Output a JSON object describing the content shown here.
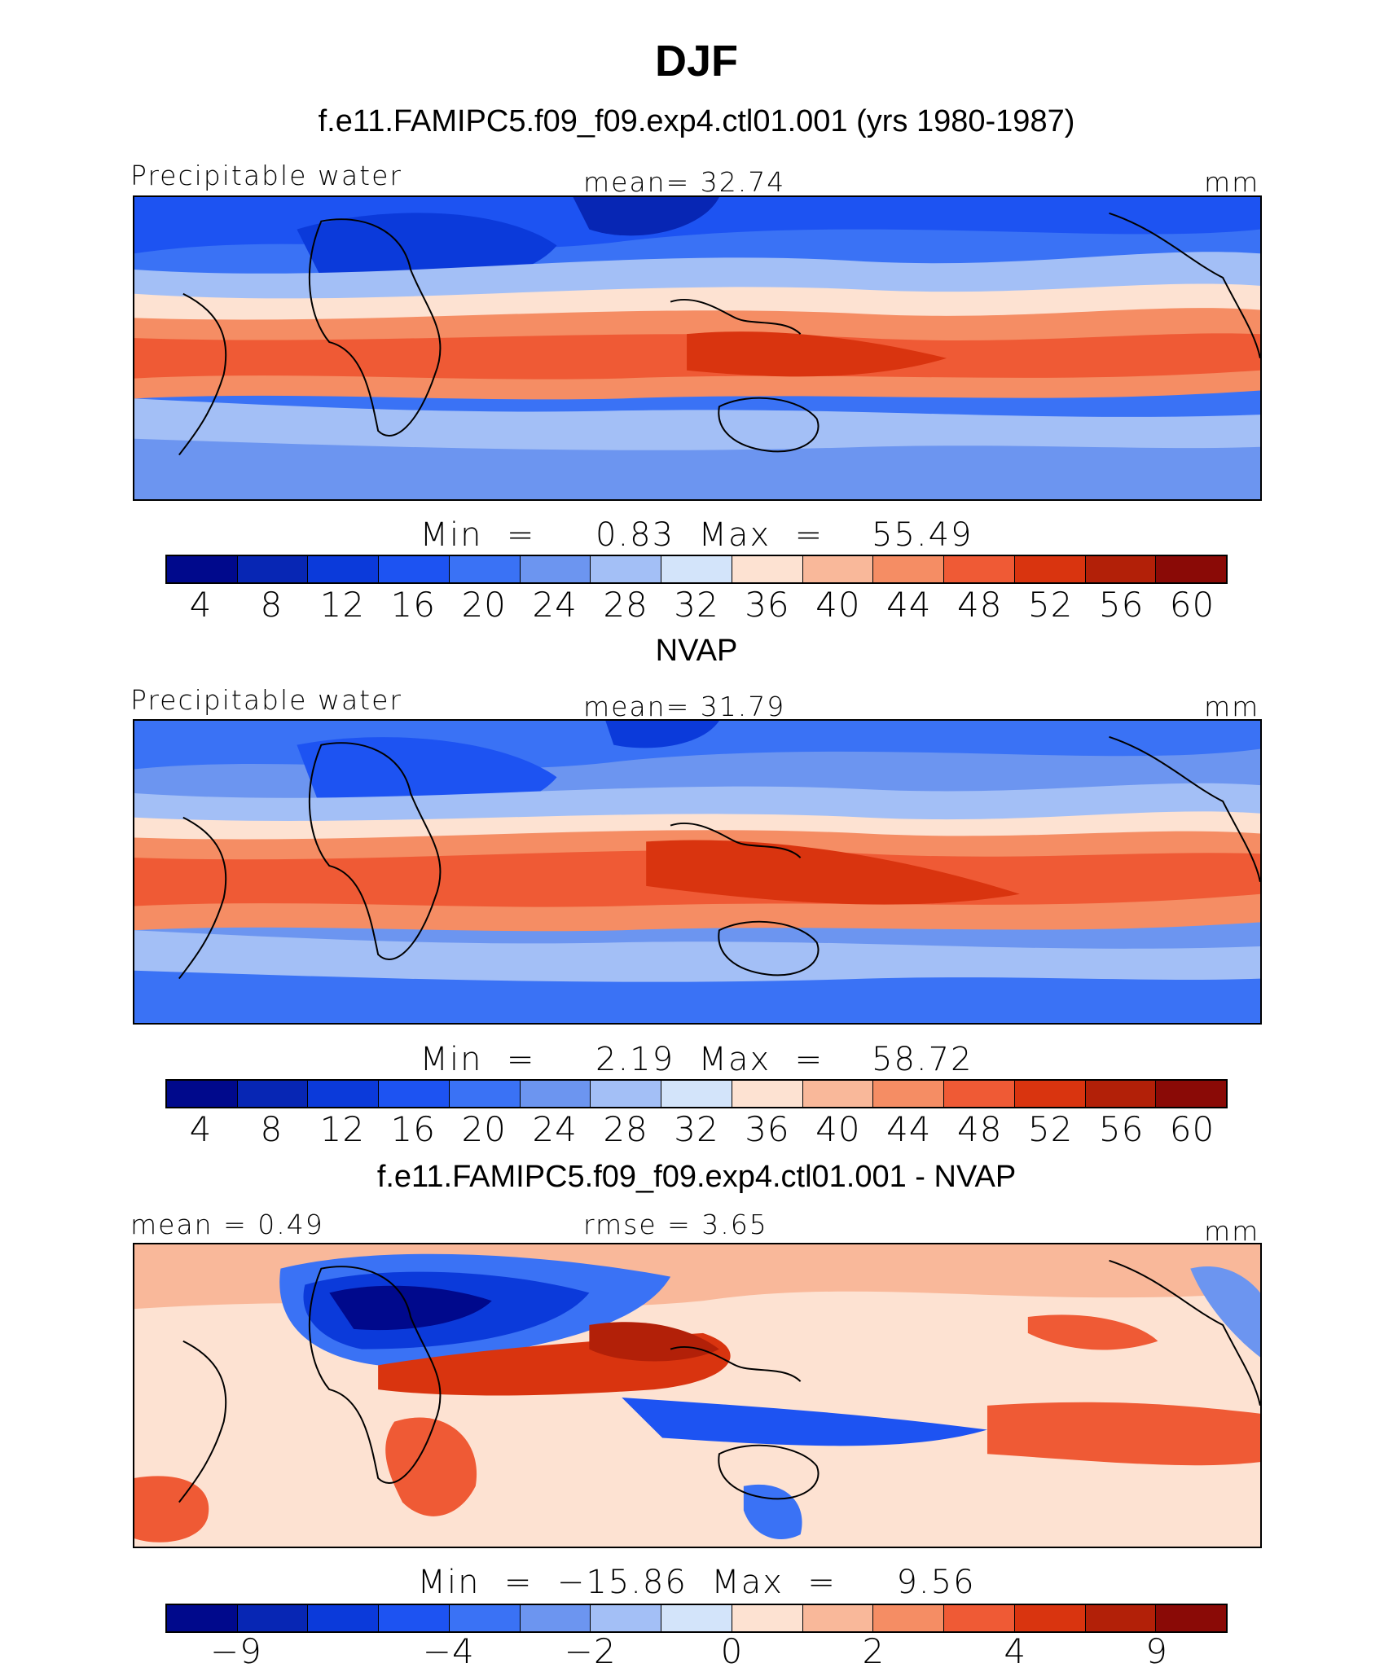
{
  "title": "DJF",
  "panels": [
    {
      "title": "f.e11.FAMIPC5.f09_f09.exp4.ctl01.001 (yrs 1980-1987)",
      "left_label": "Precipitable water",
      "center_label": "mean=   32.74",
      "units": "mm",
      "minmax": "Min  =     0.83  Max  =    55.49",
      "colors": [
        "#00098c",
        "#0726b4",
        "#0b3ada",
        "#1d53f2",
        "#3a72f5",
        "#6c95f0",
        "#a3bff6",
        "#d3e4fa",
        "#fde2d2",
        "#f9b89a",
        "#f58d64",
        "#ef5a35",
        "#d9340f",
        "#b22008",
        "#8a0a06"
      ],
      "ticks": [
        "4",
        "8",
        "12",
        "16",
        "20",
        "24",
        "28",
        "32",
        "36",
        "40",
        "44",
        "48",
        "52",
        "56",
        "60"
      ]
    },
    {
      "title": "NVAP",
      "left_label": "Precipitable water",
      "center_label": "mean=   31.79",
      "units": "mm",
      "minmax": "Min  =     2.19  Max  =    58.72",
      "colors": [
        "#00098c",
        "#0726b4",
        "#0b3ada",
        "#1d53f2",
        "#3a72f5",
        "#6c95f0",
        "#a3bff6",
        "#d3e4fa",
        "#fde2d2",
        "#f9b89a",
        "#f58d64",
        "#ef5a35",
        "#d9340f",
        "#b22008",
        "#8a0a06"
      ],
      "ticks": [
        "4",
        "8",
        "12",
        "16",
        "20",
        "24",
        "28",
        "32",
        "36",
        "40",
        "44",
        "48",
        "52",
        "56",
        "60"
      ]
    },
    {
      "title": "f.e11.FAMIPC5.f09_f09.exp4.ctl01.001 - NVAP",
      "left_label": "mean  =    0.49",
      "center_label": "rmse  =    3.65",
      "units": "mm",
      "minmax": "Min  =  −15.86  Max  =     9.56",
      "colors": [
        "#00098c",
        "#0726b4",
        "#0b3ada",
        "#1d53f2",
        "#3a72f5",
        "#6c95f0",
        "#a3bff6",
        "#d3e4fa",
        "#fde2d2",
        "#f9b89a",
        "#f58d64",
        "#ef5a35",
        "#d9340f",
        "#b22008",
        "#8a0a06"
      ],
      "ticks": [
        "−9",
        "−4",
        "−2",
        "0",
        "2",
        "4",
        "9"
      ]
    }
  ]
}
